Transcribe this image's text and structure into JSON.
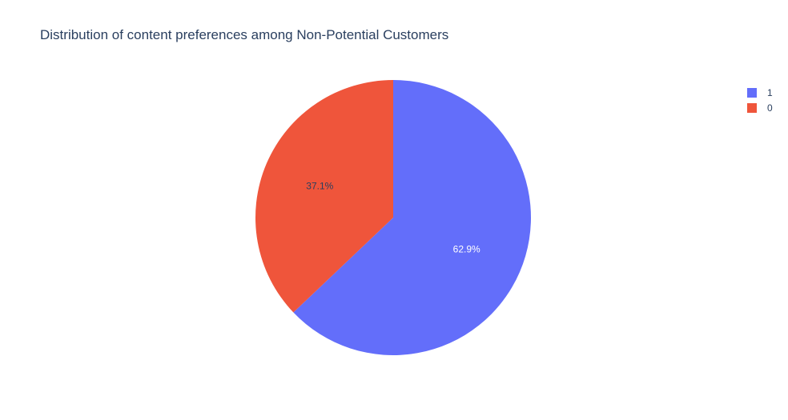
{
  "chart_data": {
    "type": "pie",
    "title": "Distribution of content preferences among Non-Potential Customers",
    "labels": [
      "1",
      "0"
    ],
    "values": [
      62.9,
      37.1
    ],
    "text_labels": [
      "62.9%",
      "37.1%"
    ],
    "colors": [
      "#636efa",
      "#ef553b"
    ],
    "text_colors": [
      "#ffffff",
      "#2a3f5f"
    ],
    "legend_position": "top-right",
    "direction": "clockwise",
    "start": "top"
  }
}
